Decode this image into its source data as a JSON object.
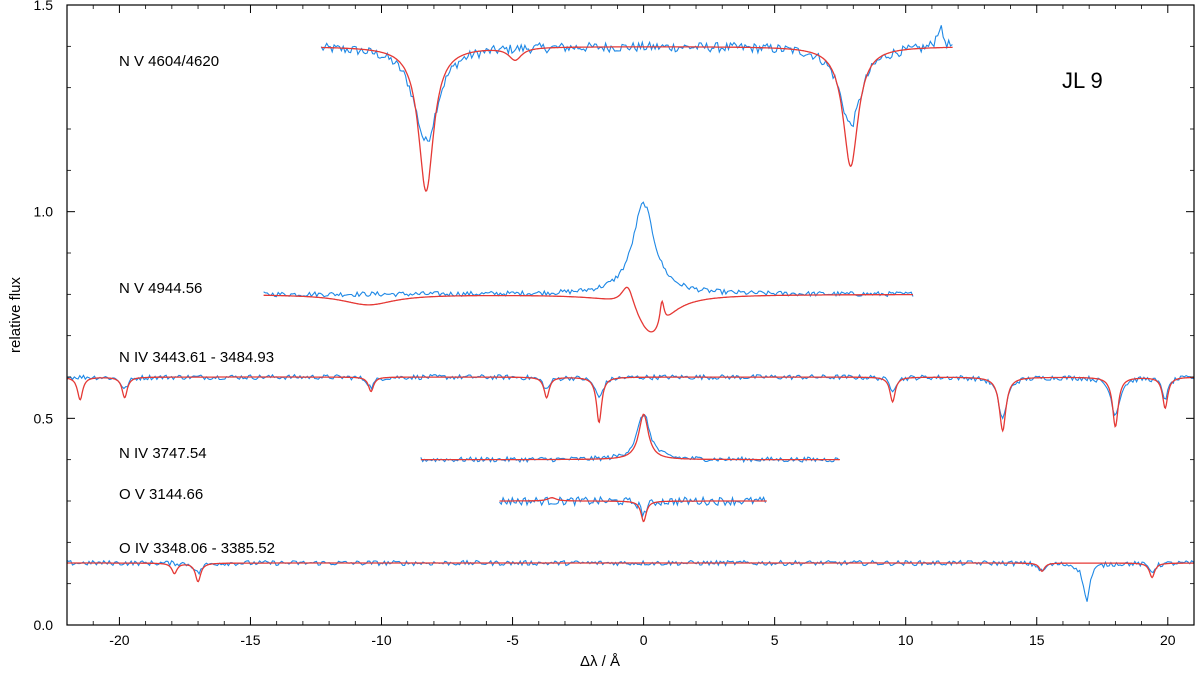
{
  "chart_data": {
    "type": "line",
    "title": "",
    "object_label": "JL 9",
    "xlabel": "Δλ / Å",
    "ylabel": "relative flux",
    "xlim": [
      -22,
      21
    ],
    "ylim": [
      0.0,
      1.5
    ],
    "xticks": [
      -20,
      -15,
      -10,
      -5,
      0,
      5,
      10,
      15,
      20
    ],
    "xtick_labels": [
      "-20",
      "-15",
      "-10",
      "-5",
      "0",
      "5",
      "10",
      "15",
      "20"
    ],
    "yticks": [
      0.0,
      0.5,
      1.0,
      1.5
    ],
    "ytick_labels": [
      "0.0",
      "0.5",
      "1.0",
      "1.5"
    ],
    "grid": false,
    "legend": "none",
    "colors": {
      "observed": "#1e88e5",
      "model": "#e53935"
    },
    "series": [
      {
        "label": "N V 4604/4620",
        "continuum": 1.4,
        "x_range": [
          -12.3,
          11.8
        ],
        "model_lines": [
          {
            "center": -8.3,
            "depth": 0.35,
            "width": 0.35
          },
          {
            "center": 7.9,
            "depth": 0.29,
            "width": 0.35
          },
          {
            "center": -4.9,
            "depth": 0.03,
            "width": 0.3
          }
        ],
        "observed_lines": [
          {
            "center": -8.3,
            "depth": 0.23,
            "width": 0.55
          },
          {
            "center": 7.9,
            "depth": 0.19,
            "width": 0.5
          },
          {
            "center": 11.3,
            "depth": -0.05,
            "width": 0.15
          }
        ],
        "noise": 0.012
      },
      {
        "label": "N V 4944.56",
        "continuum": 0.8,
        "x_range": [
          -14.5,
          10.3
        ],
        "model_lines": [
          {
            "center": -10.5,
            "depth": 0.025,
            "width": 1.2
          },
          {
            "center": 0.3,
            "depth": 0.1,
            "width": 0.8
          },
          {
            "center": -0.6,
            "depth": -0.06,
            "width": 0.3
          },
          {
            "center": 0.7,
            "depth": -0.06,
            "width": 0.1
          }
        ],
        "observed_lines": [
          {
            "center": 0.0,
            "depth": -0.22,
            "width": 0.5
          }
        ],
        "noise": 0.006
      },
      {
        "label": "N IV 3443.61 - 3484.93",
        "continuum": 0.6,
        "x_range": [
          -22,
          21
        ],
        "model_lines": [
          {
            "center": -21.5,
            "depth": 0.055,
            "width": 0.12
          },
          {
            "center": -19.8,
            "depth": 0.05,
            "width": 0.12
          },
          {
            "center": -10.4,
            "depth": 0.035,
            "width": 0.12
          },
          {
            "center": -3.7,
            "depth": 0.05,
            "width": 0.12
          },
          {
            "center": -1.7,
            "depth": 0.11,
            "width": 0.12
          },
          {
            "center": 9.5,
            "depth": 0.06,
            "width": 0.12
          },
          {
            "center": 13.7,
            "depth": 0.13,
            "width": 0.15
          },
          {
            "center": 18.0,
            "depth": 0.12,
            "width": 0.13
          },
          {
            "center": 19.9,
            "depth": 0.075,
            "width": 0.12
          }
        ],
        "observed_lines": [
          {
            "center": -19.8,
            "depth": 0.03,
            "width": 0.15
          },
          {
            "center": -10.4,
            "depth": 0.025,
            "width": 0.15
          },
          {
            "center": -3.7,
            "depth": 0.03,
            "width": 0.15
          },
          {
            "center": -1.7,
            "depth": 0.05,
            "width": 0.18
          },
          {
            "center": 9.5,
            "depth": 0.03,
            "width": 0.15
          },
          {
            "center": 13.7,
            "depth": 0.1,
            "width": 0.2
          },
          {
            "center": 18.0,
            "depth": 0.09,
            "width": 0.2
          },
          {
            "center": 19.9,
            "depth": 0.05,
            "width": 0.15
          }
        ],
        "noise": 0.006
      },
      {
        "label": "N IV 3747.54",
        "continuum": 0.4,
        "x_range": [
          -8.5,
          7.5
        ],
        "model_lines": [
          {
            "center": 0.0,
            "depth": -0.11,
            "width": 0.22
          }
        ],
        "observed_lines": [
          {
            "center": 0.0,
            "depth": -0.11,
            "width": 0.3
          }
        ],
        "noise": 0.006
      },
      {
        "label": "O V 3144.66",
        "continuum": 0.3,
        "x_range": [
          -5.5,
          4.7
        ],
        "model_lines": [
          {
            "center": 0.0,
            "depth": 0.05,
            "width": 0.12
          },
          {
            "center": -3.5,
            "depth": -0.008,
            "width": 0.2
          }
        ],
        "observed_lines": [
          {
            "center": 0.0,
            "depth": 0.03,
            "width": 0.15
          }
        ],
        "noise": 0.01
      },
      {
        "label": "O IV 3348.06 - 3385.52",
        "continuum": 0.15,
        "x_range": [
          -22,
          21
        ],
        "model_lines": [
          {
            "center": -17.9,
            "depth": 0.025,
            "width": 0.12
          },
          {
            "center": -17.0,
            "depth": 0.045,
            "width": 0.12
          },
          {
            "center": 15.2,
            "depth": 0.02,
            "width": 0.12
          },
          {
            "center": 19.4,
            "depth": 0.035,
            "width": 0.12
          }
        ],
        "observed_lines": [
          {
            "center": -17.0,
            "depth": 0.025,
            "width": 0.15
          },
          {
            "center": 15.2,
            "depth": 0.02,
            "width": 0.15
          },
          {
            "center": 16.9,
            "depth": 0.09,
            "width": 0.15
          },
          {
            "center": 19.4,
            "depth": 0.02,
            "width": 0.15
          }
        ],
        "noise": 0.006
      }
    ]
  }
}
